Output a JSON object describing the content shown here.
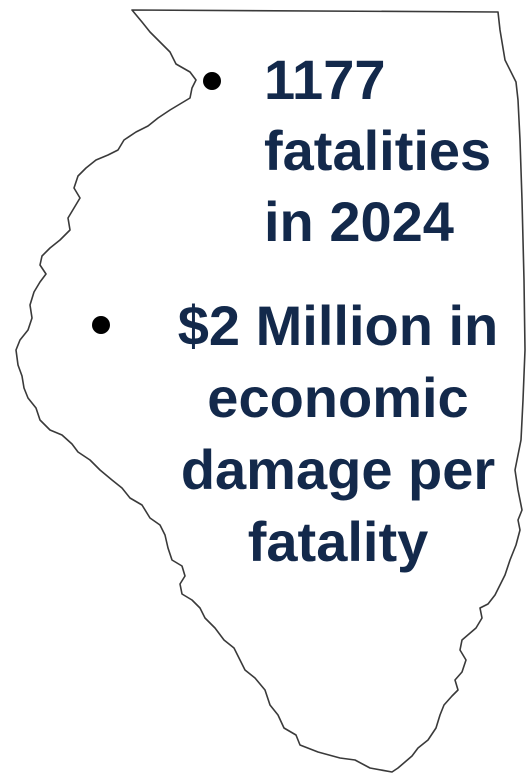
{
  "stats": [
    {
      "lines": [
        "1177",
        "fatalities",
        "in 2024"
      ]
    },
    {
      "lines": [
        "$2 Million in",
        "economic",
        "damage per",
        "fatality"
      ]
    }
  ],
  "colors": {
    "text": "#13294b",
    "bullet": "#000000",
    "outline": "#3a3a3a",
    "background": "#ffffff"
  }
}
